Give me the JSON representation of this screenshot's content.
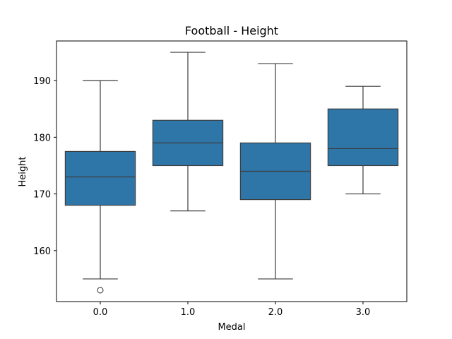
{
  "chart_data": {
    "type": "boxplot",
    "title": "Football - Height",
    "xlabel": "Medal",
    "ylabel": "Height",
    "categories": [
      "0.0",
      "1.0",
      "2.0",
      "3.0"
    ],
    "boxes": [
      {
        "whisker_low": 155,
        "q1": 168,
        "median": 173,
        "q3": 177.5,
        "whisker_high": 190,
        "outliers": [
          153
        ]
      },
      {
        "whisker_low": 167,
        "q1": 175,
        "median": 179,
        "q3": 183,
        "whisker_high": 195,
        "outliers": []
      },
      {
        "whisker_low": 155,
        "q1": 169,
        "median": 174,
        "q3": 179,
        "whisker_high": 193,
        "outliers": []
      },
      {
        "whisker_low": 170,
        "q1": 175,
        "median": 178,
        "q3": 185,
        "whisker_high": 189,
        "outliers": []
      }
    ],
    "yticks": [
      160,
      170,
      180,
      190
    ],
    "ylim": [
      151,
      197
    ],
    "box_color": "#2e75a8",
    "line_color": "#3d3d3d",
    "grid": false
  }
}
